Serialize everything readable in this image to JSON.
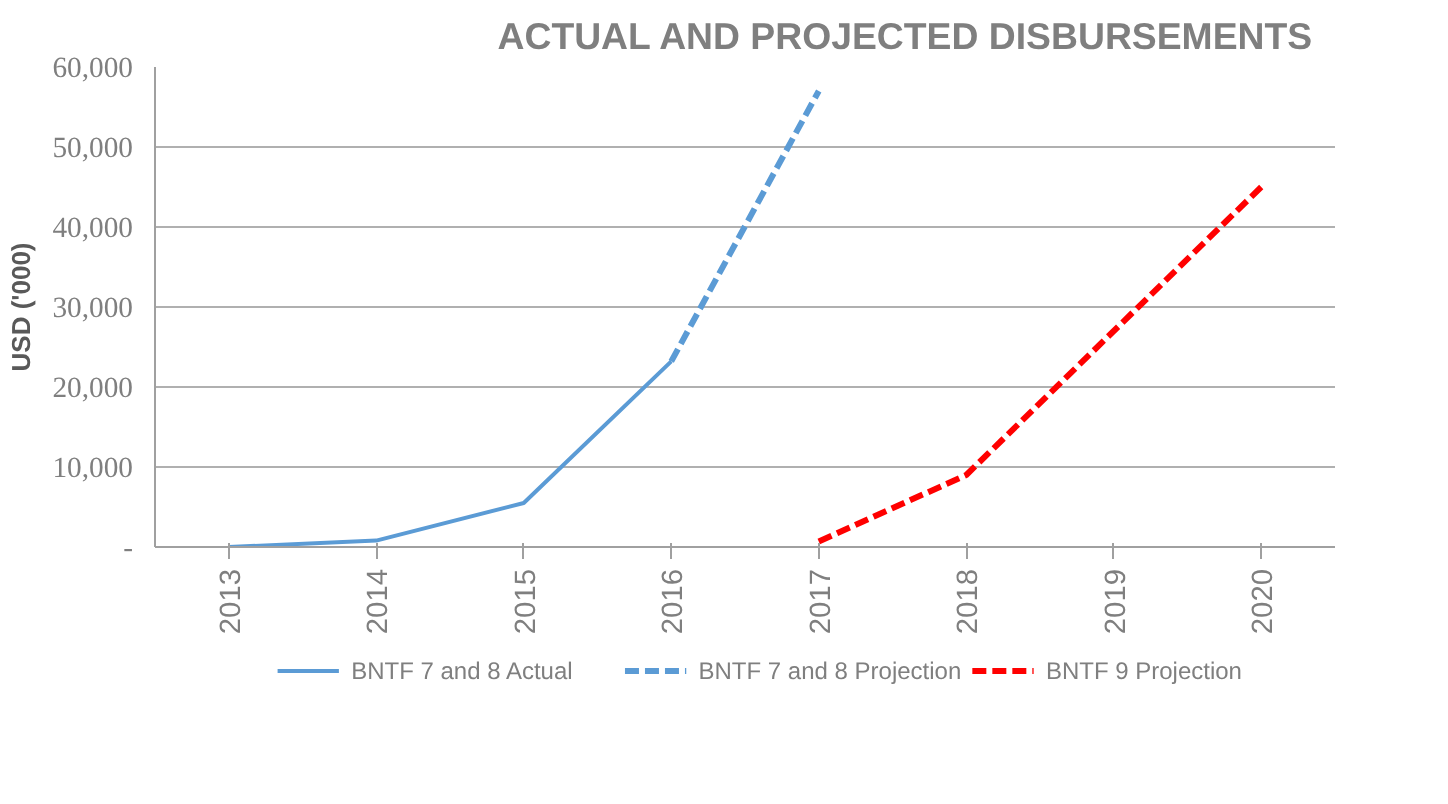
{
  "chart_data": {
    "type": "line",
    "title": "ACTUAL AND PROJECTED   DISBURSEMENTS",
    "ylabel": "USD ('000)",
    "categories": [
      "2013",
      "2014",
      "2015",
      "2016",
      "2017",
      "2018",
      "2019",
      "2020"
    ],
    "series": [
      {
        "name": "BNTF 7 and 8 Actual",
        "color": "#5b9bd5",
        "line_style": "solid",
        "values": [
          0,
          800,
          5500,
          23200,
          null,
          null,
          null,
          null
        ]
      },
      {
        "name": "BNTF 7 and 8 Projection",
        "color": "#5b9bd5",
        "line_style": "dashed",
        "values": [
          null,
          null,
          null,
          23200,
          57000,
          null,
          null,
          null
        ]
      },
      {
        "name": "BNTF 9 Projection",
        "color": "#ff0000",
        "line_style": "dashed",
        "values": [
          null,
          null,
          null,
          null,
          700,
          9000,
          27000,
          45000
        ]
      }
    ],
    "ylim": [
      0,
      60000
    ],
    "yticks": [
      {
        "value": 0,
        "label": "-"
      },
      {
        "value": 10000,
        "label": "10,000"
      },
      {
        "value": 20000,
        "label": "20,000"
      },
      {
        "value": 30000,
        "label": "30,000"
      },
      {
        "value": 40000,
        "label": "40,000"
      },
      {
        "value": 50000,
        "label": "50,000"
      },
      {
        "value": 60000,
        "label": "60,000"
      }
    ],
    "grid": "y",
    "legend": "bottom",
    "marker": "none"
  }
}
